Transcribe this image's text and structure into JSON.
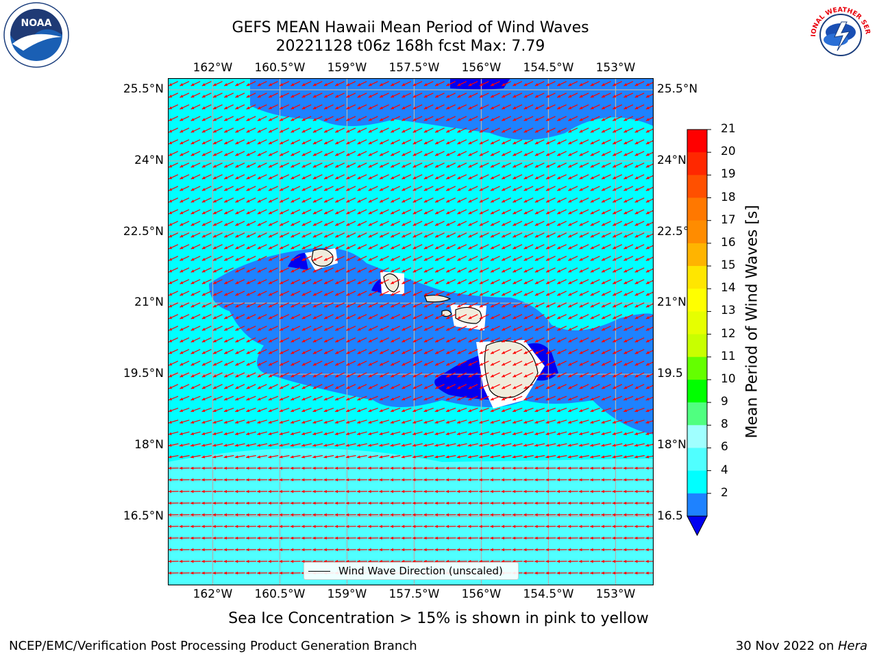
{
  "header": {
    "title_line1": "GEFS MEAN Hawaii Mean Period of Wind Waves",
    "title_line2": "20221128 t06z 168h fcst   Max: 7.79"
  },
  "logos": {
    "left": {
      "icon": "noaa-logo-icon",
      "text": "NOAA"
    },
    "right": {
      "icon": "nws-logo-icon",
      "text": "NATIONAL WEATHER SERVICE"
    }
  },
  "map": {
    "lon_labels": [
      "162°W",
      "160.5°W",
      "159°W",
      "157.5°W",
      "156°W",
      "154.5°W",
      "153°W"
    ],
    "lat_labels_left": [
      "25.5°N",
      "24°N",
      "22.5°N",
      "21°N",
      "19.5°N",
      "18°N",
      "16.5°N"
    ],
    "lat_labels_right": [
      "25.5°N",
      "24°N",
      "22.5°",
      "21°N",
      "19.5",
      "18°N",
      "16.5"
    ],
    "legend_label": "Wind Wave Direction (unscaled)",
    "colors": {
      "ocean_light": "#00ffff",
      "ocean_mid": "#50ffff",
      "ocean_dark": "#1e82ff",
      "ocean_darkest": "#0000f0",
      "land": "#f0ecdc",
      "arrow": "#ff0000",
      "grid": "#b0b0b0"
    }
  },
  "colorbar": {
    "label": "Mean Period of Wind Waves [s]",
    "ticks": [
      "21",
      "20",
      "19",
      "18",
      "17",
      "16",
      "15",
      "14",
      "13",
      "12",
      "11",
      "10",
      "9",
      "8",
      "6",
      "4",
      "2"
    ],
    "colors": [
      "#ff0000",
      "#ff2800",
      "#ff5000",
      "#ff7800",
      "#ff8c00",
      "#ffb400",
      "#ffe600",
      "#ffff00",
      "#e6ff00",
      "#c8ff00",
      "#64ff00",
      "#00ff00",
      "#50ff80",
      "#a0ffff",
      "#50ffff",
      "#00ffff",
      "#1e82ff"
    ],
    "under_color": "#0000f0"
  },
  "footer": {
    "caption": "Sea Ice Concentration > 15% is shown in pink to yellow",
    "left": "NCEP/EMC/Verification Post Processing Product Generation Branch",
    "right_date": "30 Nov 2022 on ",
    "right_host": "Hera"
  }
}
